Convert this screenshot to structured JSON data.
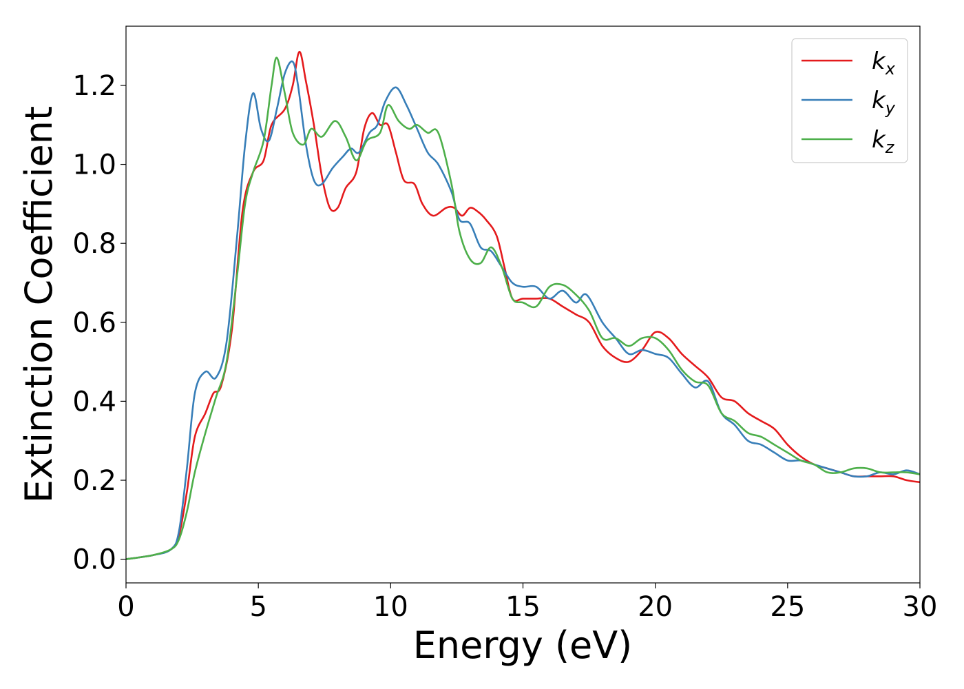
{
  "chart_data": {
    "type": "line",
    "title": "",
    "xlabel": "Energy (eV)",
    "ylabel": "Extinction Coefficient",
    "xlim": [
      0,
      30
    ],
    "ylim": [
      -0.06,
      1.35
    ],
    "xticks": [
      0,
      5,
      10,
      15,
      20,
      25,
      30
    ],
    "xtick_labels": [
      "0",
      "5",
      "10",
      "15",
      "20",
      "25",
      "30"
    ],
    "yticks": [
      0.0,
      0.2,
      0.4,
      0.6,
      0.8,
      1.0,
      1.2
    ],
    "ytick_labels": [
      "0.0",
      "0.2",
      "0.4",
      "0.6",
      "0.8",
      "1.0",
      "1.2"
    ],
    "grid": false,
    "legend_position": "top-right",
    "series": [
      {
        "name": "k",
        "subscript": "x",
        "color": "#e41a1c",
        "points": [
          [
            0,
            0
          ],
          [
            1,
            0.01
          ],
          [
            1.7,
            0.025
          ],
          [
            2,
            0.06
          ],
          [
            2.3,
            0.17
          ],
          [
            2.6,
            0.31
          ],
          [
            3,
            0.37
          ],
          [
            3.3,
            0.42
          ],
          [
            3.6,
            0.44
          ],
          [
            4,
            0.58
          ],
          [
            4.4,
            0.88
          ],
          [
            4.8,
            0.98
          ],
          [
            5.2,
            1.01
          ],
          [
            5.5,
            1.1
          ],
          [
            6,
            1.14
          ],
          [
            6.3,
            1.2
          ],
          [
            6.55,
            1.285
          ],
          [
            6.8,
            1.21
          ],
          [
            7.1,
            1.1
          ],
          [
            7.4,
            0.97
          ],
          [
            7.7,
            0.89
          ],
          [
            8,
            0.89
          ],
          [
            8.3,
            0.94
          ],
          [
            8.7,
            0.98
          ],
          [
            9,
            1.09
          ],
          [
            9.3,
            1.13
          ],
          [
            9.6,
            1.1
          ],
          [
            9.9,
            1.1
          ],
          [
            10.2,
            1.03
          ],
          [
            10.5,
            0.96
          ],
          [
            10.9,
            0.95
          ],
          [
            11.2,
            0.9
          ],
          [
            11.6,
            0.87
          ],
          [
            12.1,
            0.89
          ],
          [
            12.4,
            0.89
          ],
          [
            12.7,
            0.87
          ],
          [
            13,
            0.89
          ],
          [
            13.3,
            0.88
          ],
          [
            13.6,
            0.86
          ],
          [
            14,
            0.82
          ],
          [
            14.3,
            0.74
          ],
          [
            14.6,
            0.66
          ],
          [
            15,
            0.66
          ],
          [
            15.5,
            0.66
          ],
          [
            16,
            0.66
          ],
          [
            16.5,
            0.64
          ],
          [
            17,
            0.62
          ],
          [
            17.5,
            0.6
          ],
          [
            18,
            0.54
          ],
          [
            18.5,
            0.51
          ],
          [
            19,
            0.5
          ],
          [
            19.5,
            0.53
          ],
          [
            20,
            0.575
          ],
          [
            20.5,
            0.56
          ],
          [
            21,
            0.52
          ],
          [
            21.5,
            0.49
          ],
          [
            22,
            0.46
          ],
          [
            22.5,
            0.41
          ],
          [
            23,
            0.4
          ],
          [
            23.5,
            0.37
          ],
          [
            24,
            0.35
          ],
          [
            24.5,
            0.33
          ],
          [
            25,
            0.29
          ],
          [
            25.5,
            0.26
          ],
          [
            26,
            0.24
          ],
          [
            26.5,
            0.23
          ],
          [
            27,
            0.22
          ],
          [
            27.5,
            0.21
          ],
          [
            28,
            0.21
          ],
          [
            28.5,
            0.21
          ],
          [
            29,
            0.21
          ],
          [
            29.5,
            0.2
          ],
          [
            30,
            0.195
          ]
        ]
      },
      {
        "name": "k",
        "subscript": "y",
        "color": "#377eb8",
        "points": [
          [
            0,
            0
          ],
          [
            1,
            0.01
          ],
          [
            1.7,
            0.025
          ],
          [
            2,
            0.07
          ],
          [
            2.3,
            0.23
          ],
          [
            2.6,
            0.42
          ],
          [
            3,
            0.475
          ],
          [
            3.4,
            0.46
          ],
          [
            3.8,
            0.55
          ],
          [
            4.2,
            0.82
          ],
          [
            4.5,
            1.05
          ],
          [
            4.8,
            1.18
          ],
          [
            5.1,
            1.09
          ],
          [
            5.4,
            1.06
          ],
          [
            5.7,
            1.14
          ],
          [
            6,
            1.23
          ],
          [
            6.3,
            1.26
          ],
          [
            6.5,
            1.2
          ],
          [
            6.8,
            1.05
          ],
          [
            7.1,
            0.96
          ],
          [
            7.4,
            0.95
          ],
          [
            7.8,
            0.99
          ],
          [
            8.2,
            1.02
          ],
          [
            8.5,
            1.04
          ],
          [
            8.8,
            1.03
          ],
          [
            9.2,
            1.08
          ],
          [
            9.5,
            1.1
          ],
          [
            9.8,
            1.16
          ],
          [
            10.2,
            1.195
          ],
          [
            10.6,
            1.15
          ],
          [
            11,
            1.09
          ],
          [
            11.4,
            1.03
          ],
          [
            11.8,
            1.0
          ],
          [
            12.3,
            0.93
          ],
          [
            12.6,
            0.86
          ],
          [
            13,
            0.85
          ],
          [
            13.4,
            0.79
          ],
          [
            13.8,
            0.78
          ],
          [
            14.2,
            0.74
          ],
          [
            14.6,
            0.7
          ],
          [
            15,
            0.69
          ],
          [
            15.5,
            0.69
          ],
          [
            16,
            0.66
          ],
          [
            16.5,
            0.68
          ],
          [
            17,
            0.65
          ],
          [
            17.4,
            0.67
          ],
          [
            18,
            0.6
          ],
          [
            18.5,
            0.56
          ],
          [
            19,
            0.52
          ],
          [
            19.5,
            0.53
          ],
          [
            20,
            0.52
          ],
          [
            20.5,
            0.51
          ],
          [
            21,
            0.47
          ],
          [
            21.5,
            0.435
          ],
          [
            22,
            0.45
          ],
          [
            22.5,
            0.37
          ],
          [
            23,
            0.34
          ],
          [
            23.5,
            0.3
          ],
          [
            24,
            0.29
          ],
          [
            24.5,
            0.27
          ],
          [
            25,
            0.25
          ],
          [
            25.5,
            0.25
          ],
          [
            26,
            0.24
          ],
          [
            26.5,
            0.23
          ],
          [
            27,
            0.22
          ],
          [
            27.5,
            0.21
          ],
          [
            28,
            0.21
          ],
          [
            28.5,
            0.22
          ],
          [
            29,
            0.215
          ],
          [
            29.5,
            0.225
          ],
          [
            30,
            0.215
          ]
        ]
      },
      {
        "name": "k",
        "subscript": "z",
        "color": "#4daf4a",
        "points": [
          [
            0,
            0
          ],
          [
            1,
            0.01
          ],
          [
            1.7,
            0.025
          ],
          [
            2,
            0.05
          ],
          [
            2.3,
            0.12
          ],
          [
            2.6,
            0.22
          ],
          [
            3,
            0.32
          ],
          [
            3.4,
            0.41
          ],
          [
            3.8,
            0.5
          ],
          [
            4.2,
            0.72
          ],
          [
            4.5,
            0.9
          ],
          [
            4.8,
            0.98
          ],
          [
            5.2,
            1.06
          ],
          [
            5.5,
            1.2
          ],
          [
            5.7,
            1.27
          ],
          [
            6,
            1.18
          ],
          [
            6.3,
            1.08
          ],
          [
            6.7,
            1.05
          ],
          [
            7,
            1.09
          ],
          [
            7.4,
            1.07
          ],
          [
            7.9,
            1.11
          ],
          [
            8.3,
            1.07
          ],
          [
            8.7,
            1.01
          ],
          [
            9.1,
            1.06
          ],
          [
            9.6,
            1.08
          ],
          [
            9.9,
            1.15
          ],
          [
            10.3,
            1.11
          ],
          [
            10.7,
            1.09
          ],
          [
            11,
            1.1
          ],
          [
            11.4,
            1.08
          ],
          [
            11.8,
            1.08
          ],
          [
            12.3,
            0.95
          ],
          [
            12.6,
            0.83
          ],
          [
            13,
            0.76
          ],
          [
            13.4,
            0.75
          ],
          [
            13.8,
            0.79
          ],
          [
            14.2,
            0.74
          ],
          [
            14.6,
            0.66
          ],
          [
            15,
            0.65
          ],
          [
            15.5,
            0.64
          ],
          [
            16,
            0.69
          ],
          [
            16.5,
            0.695
          ],
          [
            17,
            0.67
          ],
          [
            17.5,
            0.63
          ],
          [
            18,
            0.56
          ],
          [
            18.5,
            0.56
          ],
          [
            19,
            0.54
          ],
          [
            19.5,
            0.56
          ],
          [
            20,
            0.56
          ],
          [
            20.5,
            0.53
          ],
          [
            21,
            0.48
          ],
          [
            21.5,
            0.45
          ],
          [
            22,
            0.44
          ],
          [
            22.5,
            0.37
          ],
          [
            23,
            0.35
          ],
          [
            23.5,
            0.32
          ],
          [
            24,
            0.31
          ],
          [
            24.5,
            0.29
          ],
          [
            25,
            0.27
          ],
          [
            25.5,
            0.25
          ],
          [
            26,
            0.24
          ],
          [
            26.5,
            0.22
          ],
          [
            27,
            0.22
          ],
          [
            27.5,
            0.23
          ],
          [
            28,
            0.23
          ],
          [
            28.5,
            0.22
          ],
          [
            29,
            0.22
          ],
          [
            29.5,
            0.22
          ],
          [
            30,
            0.215
          ]
        ]
      }
    ]
  }
}
